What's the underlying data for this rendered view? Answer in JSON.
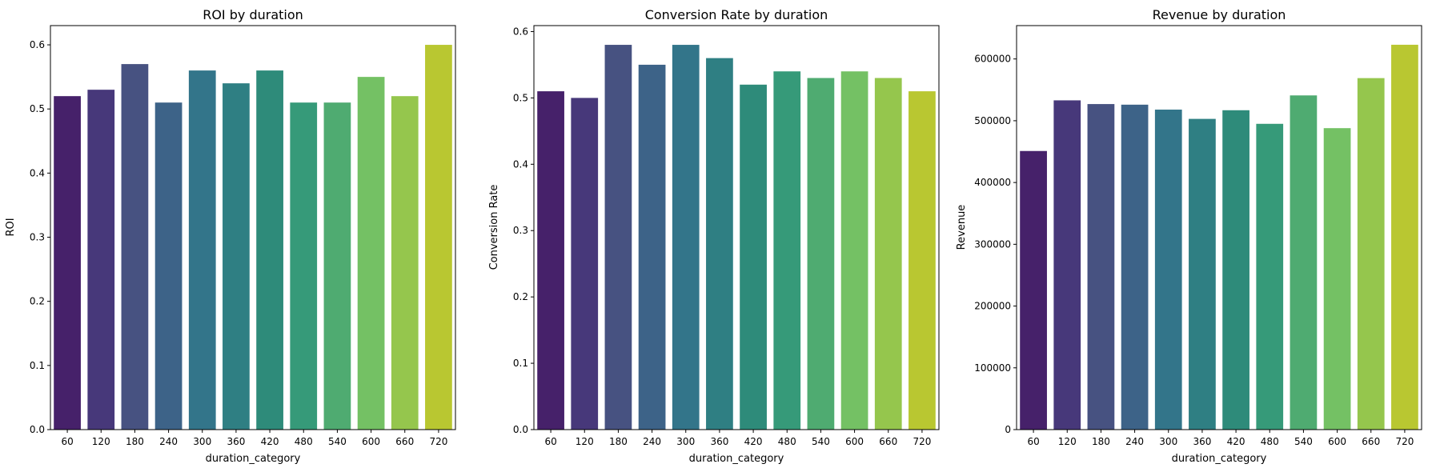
{
  "chart_data": [
    {
      "type": "bar",
      "title": "ROI by duration",
      "xlabel": "duration_category",
      "ylabel": "ROI",
      "categories": [
        "60",
        "120",
        "180",
        "240",
        "300",
        "360",
        "420",
        "480",
        "540",
        "600",
        "660",
        "720"
      ],
      "values": [
        0.52,
        0.53,
        0.57,
        0.51,
        0.56,
        0.54,
        0.56,
        0.51,
        0.51,
        0.55,
        0.52,
        0.6
      ],
      "ylim": [
        0,
        0.63
      ],
      "yticks": [
        0.0,
        0.1,
        0.2,
        0.3,
        0.4,
        0.5,
        0.6
      ],
      "ytick_labels": [
        "0.0",
        "0.1",
        "0.2",
        "0.3",
        "0.4",
        "0.5",
        "0.6"
      ],
      "grid": false
    },
    {
      "type": "bar",
      "title": "Conversion Rate by duration",
      "xlabel": "duration_category",
      "ylabel": "Conversion Rate",
      "categories": [
        "60",
        "120",
        "180",
        "240",
        "300",
        "360",
        "420",
        "480",
        "540",
        "600",
        "660",
        "720"
      ],
      "values": [
        0.51,
        0.5,
        0.58,
        0.55,
        0.58,
        0.56,
        0.52,
        0.54,
        0.53,
        0.54,
        0.53,
        0.51
      ],
      "ylim": [
        0,
        0.609
      ],
      "yticks": [
        0.0,
        0.1,
        0.2,
        0.3,
        0.4,
        0.5,
        0.6
      ],
      "ytick_labels": [
        "0.0",
        "0.1",
        "0.2",
        "0.3",
        "0.4",
        "0.5",
        "0.6"
      ],
      "grid": false
    },
    {
      "type": "bar",
      "title": "Revenue by duration",
      "xlabel": "duration_category",
      "ylabel": "Revenue",
      "categories": [
        "60",
        "120",
        "180",
        "240",
        "300",
        "360",
        "420",
        "480",
        "540",
        "600",
        "660",
        "720"
      ],
      "values": [
        451000,
        533000,
        527000,
        526000,
        518000,
        503000,
        517000,
        495000,
        541000,
        488000,
        569000,
        623000
      ],
      "ylim": [
        0,
        654000
      ],
      "yticks": [
        0,
        100000,
        200000,
        300000,
        400000,
        500000,
        600000
      ],
      "ytick_labels": [
        "0",
        "100000",
        "200000",
        "300000",
        "400000",
        "500000",
        "600000"
      ],
      "grid": false
    }
  ],
  "colors": [
    "#46216a",
    "#47387a",
    "#475281",
    "#3d6388",
    "#33758a",
    "#2f7f83",
    "#2e8b7a",
    "#369a79",
    "#4fab71",
    "#74c164",
    "#95c64d",
    "#b9c731"
  ]
}
